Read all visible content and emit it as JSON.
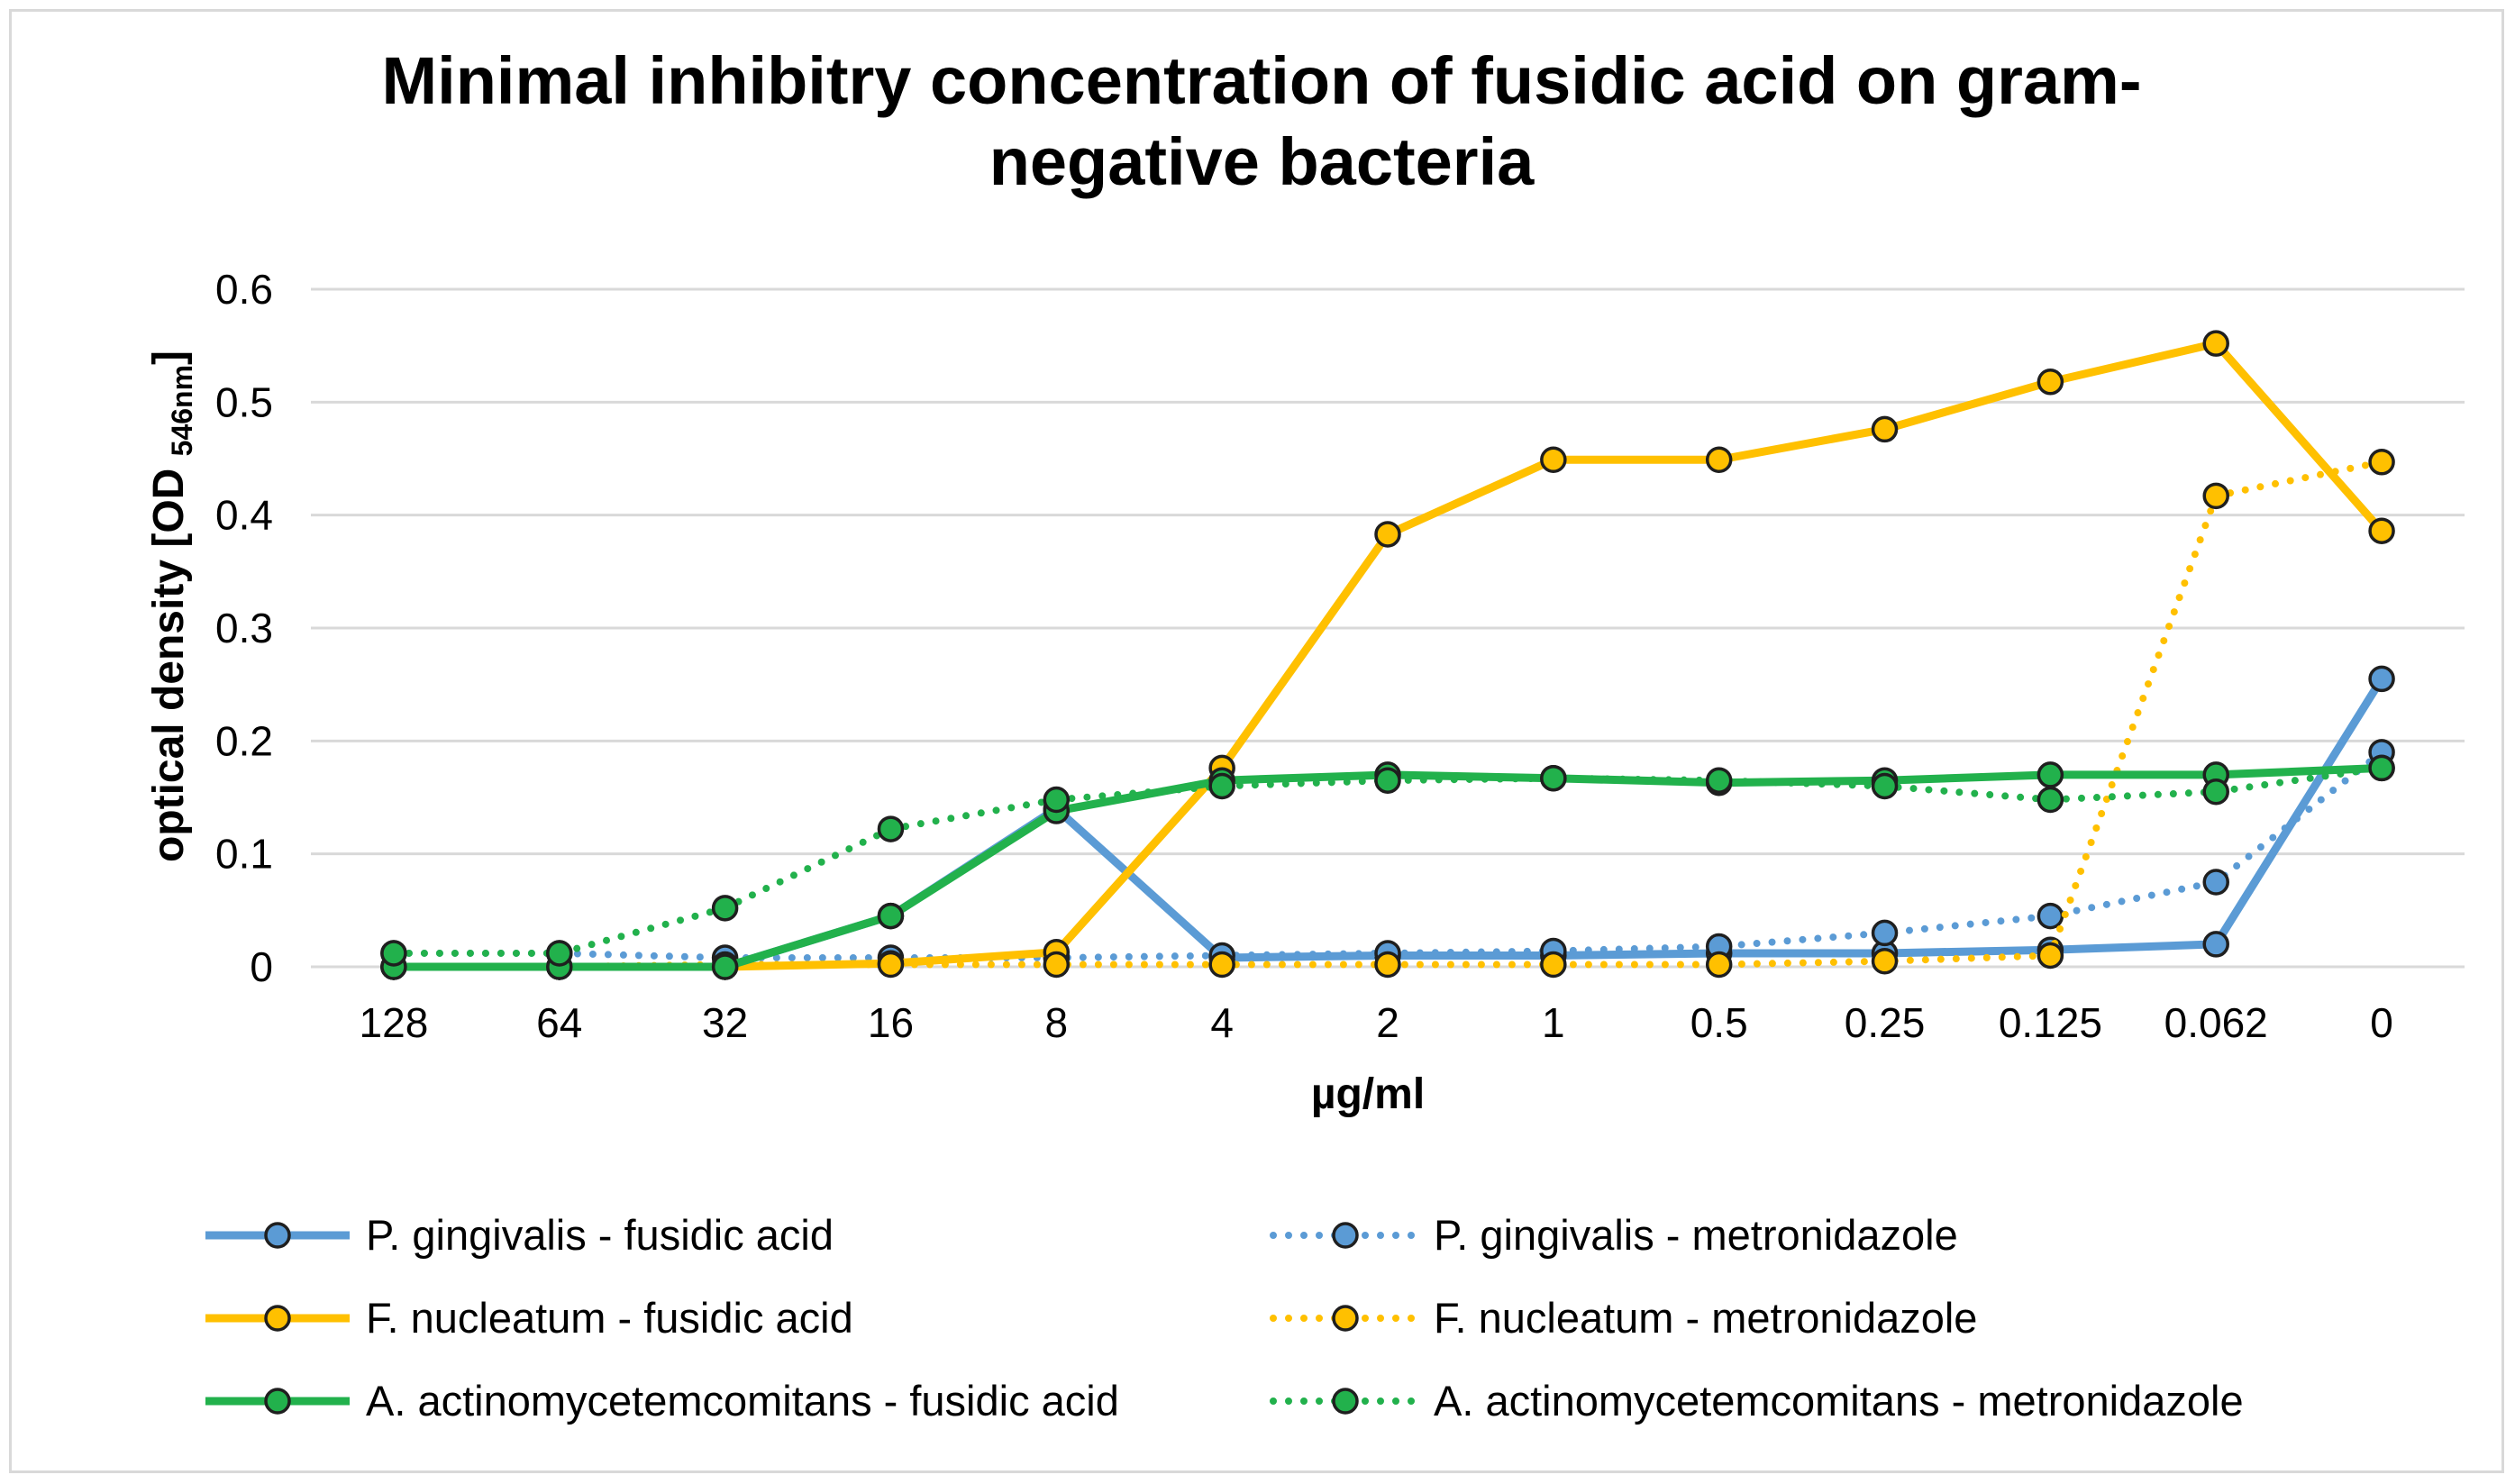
{
  "chart_data": {
    "type": "line",
    "title_lines": [
      "Minimal inhibitry concentration of fusidic acid on gram-",
      "negative bacteria"
    ],
    "xlabel": "µg/ml",
    "ylabel": "optical density [OD ",
    "ylabel_subscript": "546nm",
    "ylabel_close": "]",
    "categories": [
      "128",
      "64",
      "32",
      "16",
      "8",
      "4",
      "2",
      "1",
      "0.5",
      "0.25",
      "0.125",
      "0.062",
      "0"
    ],
    "ylim": [
      0,
      0.6
    ],
    "yticks": [
      "0",
      "0.1",
      "0.2",
      "0.3",
      "0.4",
      "0.5",
      "0.6"
    ],
    "grid": true,
    "legend_position": "bottom",
    "series": [
      {
        "name": "P. gingivalis - fusidic acid",
        "color": "#5b9bd5",
        "style": "solid",
        "values": [
          0.0,
          0.0,
          0.0,
          0.045,
          0.14,
          0.008,
          0.01,
          0.01,
          0.012,
          0.012,
          0.015,
          0.02,
          0.255
        ]
      },
      {
        "name": "P. gingivalis - metronidazole",
        "color": "#5b9bd5",
        "style": "dotted",
        "values": [
          0.012,
          0.012,
          0.008,
          0.008,
          0.008,
          0.01,
          0.012,
          0.014,
          0.018,
          0.03,
          0.045,
          0.075,
          0.19
        ]
      },
      {
        "name": "F. nucleatum - fusidic acid",
        "color": "#ffc000",
        "style": "solid",
        "values": [
          0.0,
          0.0,
          0.0,
          0.003,
          0.013,
          0.176,
          0.383,
          0.449,
          0.449,
          0.476,
          0.518,
          0.552,
          0.386
        ]
      },
      {
        "name": "F. nucleatum - metronidazole",
        "color": "#ffc000",
        "style": "dotted",
        "values": [
          0.0,
          0.0,
          0.002,
          0.002,
          0.002,
          0.002,
          0.002,
          0.002,
          0.002,
          0.005,
          0.01,
          0.417,
          0.447
        ]
      },
      {
        "name": "A. actinomycetemcomitans - fusidic acid",
        "color": "#22b14c",
        "style": "solid",
        "values": [
          0.0,
          0.0,
          0.0,
          0.045,
          0.138,
          0.165,
          0.17,
          0.167,
          0.163,
          0.165,
          0.17,
          0.17,
          0.176
        ]
      },
      {
        "name": "A. actinomycetemcomitans - metronidazole",
        "color": "#22b14c",
        "style": "dotted",
        "values": [
          0.012,
          0.012,
          0.052,
          0.122,
          0.148,
          0.16,
          0.165,
          0.167,
          0.165,
          0.16,
          0.148,
          0.155,
          0.176
        ]
      }
    ]
  }
}
